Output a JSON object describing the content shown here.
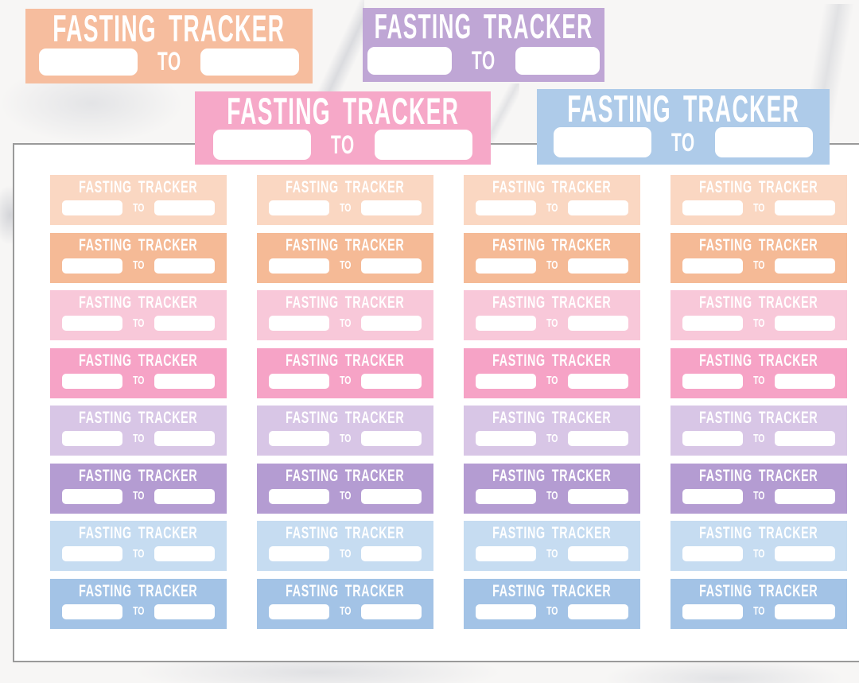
{
  "background": {
    "base_color": "#F7F6F5"
  },
  "sticker_text": {
    "title": "FASTING TRACKER",
    "to_label": "TO"
  },
  "large_stickers": [
    {
      "name": "peach",
      "color": "#F6BD9E"
    },
    {
      "name": "lavender",
      "color": "#BFA6D5"
    },
    {
      "name": "pink",
      "color": "#F6A8C8"
    },
    {
      "name": "blue",
      "color": "#AECBE9"
    }
  ],
  "sheet": {
    "background": "#FFFFFF",
    "border_color": "#9A9A9A",
    "columns": 4,
    "rows": [
      {
        "name": "light-peach",
        "color": "#FAD7C2"
      },
      {
        "name": "peach-orange",
        "color": "#F5BA96"
      },
      {
        "name": "light-pink",
        "color": "#F8C8D9"
      },
      {
        "name": "bubblegum-pink",
        "color": "#F6A3C6"
      },
      {
        "name": "light-lavender",
        "color": "#D8C6E6"
      },
      {
        "name": "purple",
        "color": "#B49CD2"
      },
      {
        "name": "light-blue",
        "color": "#C6DCF1"
      },
      {
        "name": "cornflower-blue",
        "color": "#A3C3E6"
      }
    ]
  }
}
